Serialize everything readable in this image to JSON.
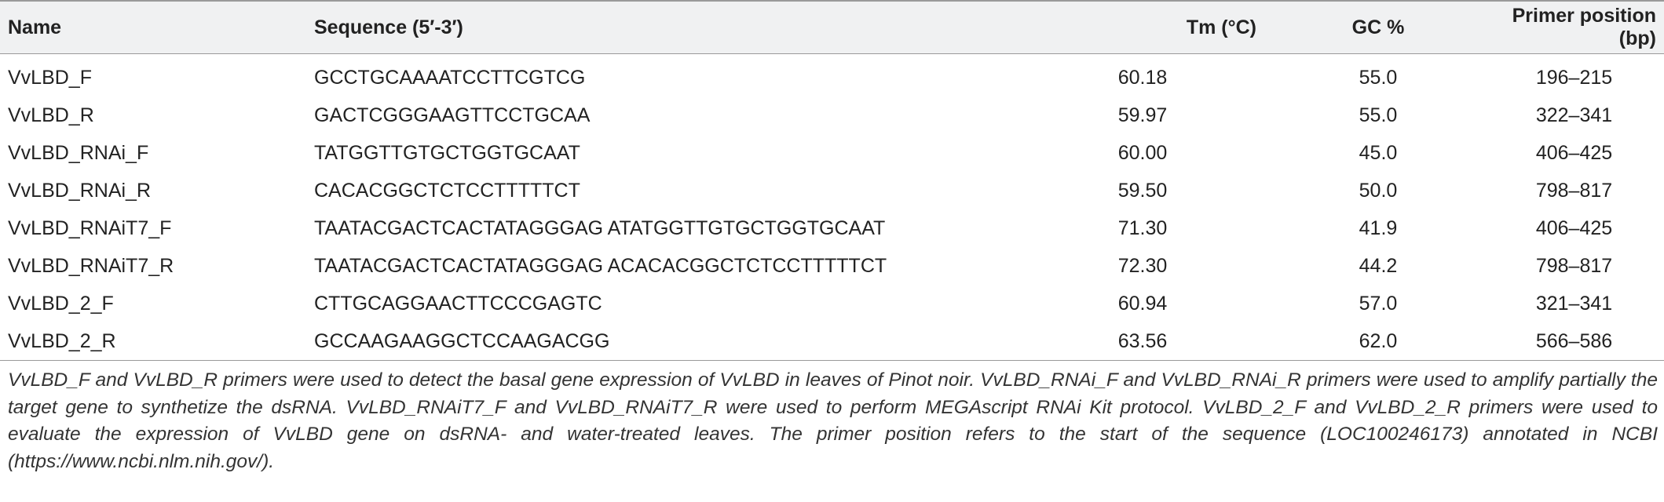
{
  "table": {
    "header": [
      "Name",
      "Sequence (5′-3′)",
      "Tm (°C)",
      "GC %",
      "Primer position (bp)"
    ],
    "rows": [
      [
        "VvLBD_F",
        "GCCTGCAAAATCCTTCGTCG",
        "60.18",
        "55.0",
        "196–215"
      ],
      [
        "VvLBD_R",
        "GACTCGGGAAGTTCCTGCAA",
        "59.97",
        "55.0",
        "322–341"
      ],
      [
        "VvLBD_RNAi_F",
        "TATGGTTGTGCTGGTGCAAT",
        "60.00",
        "45.0",
        "406–425"
      ],
      [
        "VvLBD_RNAi_R",
        "CACACGGCTCTCCTTTTTCT",
        "59.50",
        "50.0",
        "798–817"
      ],
      [
        "VvLBD_RNAiT7_F",
        "TAATACGACTCACTATAGGGAG ATATGGTTGTGCTGGTGCAAT",
        "71.30",
        "41.9",
        "406–425"
      ],
      [
        "VvLBD_RNAiT7_R",
        "TAATACGACTCACTATAGGGAG ACACACGGCTCTCCTTTTTCT",
        "72.30",
        "44.2",
        "798–817"
      ],
      [
        "VvLBD_2_F",
        "CTTGCAGGAACTTCCCGAGTC",
        "60.94",
        "57.0",
        "321–341"
      ],
      [
        "VvLBD_2_R",
        "GCCAAGAAGGCTCCAAGACGG",
        "63.56",
        "62.0",
        "566–586"
      ]
    ]
  },
  "caption": "VvLBD_F and VvLBD_R primers were used to detect the basal gene expression of VvLBD in leaves of Pinot noir. VvLBD_RNAi_F and VvLBD_RNAi_R primers were used to amplify partially the target gene to synthetize the dsRNA. VvLBD_RNAiT7_F and VvLBD_RNAiT7_R were used to perform MEGAscript RNAi Kit protocol. VvLBD_2_F and VvLBD_2_R primers were used to evaluate the expression of VvLBD gene on dsRNA- and water-treated leaves. The primer position refers to the start of the sequence (LOC100246173) annotated in NCBI (https://www.ncbi.nlm.nih.gov/)."
}
